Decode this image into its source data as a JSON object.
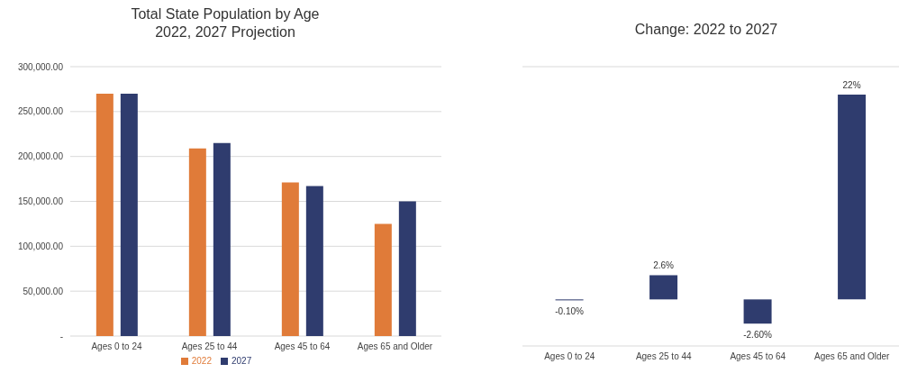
{
  "chart_data": [
    {
      "type": "bar",
      "title": "Total State Population by Age\n2022, 2027 Projection",
      "categories": [
        "Ages 0 to 24",
        "Ages 25 to 44",
        "Ages 45 to 64",
        "Ages 65 and Older"
      ],
      "series": [
        {
          "name": "2022",
          "color": "#e07b39",
          "values": [
            270000,
            209000,
            171000,
            125000
          ]
        },
        {
          "name": "2027",
          "color": "#2f3c6e",
          "values": [
            270000,
            215000,
            167000,
            150000
          ]
        }
      ],
      "ylim": [
        0,
        300000
      ],
      "yticks": [
        {
          "value": 0,
          "label": "-"
        },
        {
          "value": 50000,
          "label": "50,000.00"
        },
        {
          "value": 100000,
          "label": "100,000.00"
        },
        {
          "value": 150000,
          "label": "150,000.00"
        },
        {
          "value": 200000,
          "label": "200,000.00"
        },
        {
          "value": 250000,
          "label": "250,000.00"
        },
        {
          "value": 300000,
          "label": "300,000.00"
        }
      ],
      "grid": "y",
      "legend": "bottom"
    },
    {
      "type": "bar",
      "title": "Change: 2022 to 2027",
      "categories": [
        "Ages 0 to 24",
        "Ages 25 to 44",
        "Ages 45 to 64",
        "Ages 65 and Older"
      ],
      "series": [
        {
          "color": "#2f3c6e",
          "values": [
            -0.1,
            2.6,
            -2.6,
            22
          ],
          "value_labels": [
            "-0.10%",
            "2.6%",
            "-2.60%",
            "22%"
          ]
        }
      ],
      "ylim": [
        -5,
        25
      ],
      "grid": "y",
      "tick_labels": "x"
    }
  ]
}
